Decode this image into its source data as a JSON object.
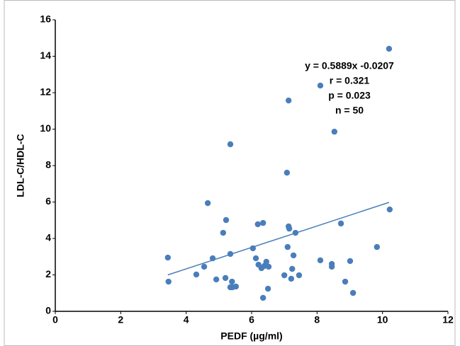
{
  "chart_data": {
    "type": "scatter",
    "xlabel": "PEDF (µg/ml)",
    "ylabel": "LDL-C/HDL-C",
    "xlim": [
      0,
      12
    ],
    "xticks": [
      0,
      2,
      4,
      6,
      8,
      10,
      12
    ],
    "ylim": [
      0,
      16
    ],
    "yticks": [
      0,
      2,
      4,
      6,
      8,
      10,
      12,
      14,
      16
    ],
    "grid": false,
    "series": [
      {
        "color": "#4a7ebb",
        "x": [
          5.35,
          7.13,
          8.1,
          10.2,
          8.53,
          7.08,
          4.66,
          5.22,
          5.13,
          6.19,
          6.35,
          7.13,
          7.15,
          7.34,
          8.73,
          10.22,
          3.44,
          3.46,
          4.31,
          4.55,
          4.81,
          4.92,
          5.2,
          5.35,
          5.35,
          5.4,
          5.41,
          5.52,
          6.04,
          6.13,
          6.21,
          6.3,
          6.39,
          6.45,
          6.52,
          6.5,
          6.35,
          7.0,
          7.1,
          7.21,
          7.24,
          7.28,
          7.45,
          8.1,
          8.45,
          8.45,
          8.86,
          9.01,
          9.1,
          9.83
        ],
        "values": [
          9.17,
          11.57,
          12.39,
          14.41,
          9.86,
          7.61,
          5.94,
          5.01,
          4.31,
          4.78,
          4.85,
          4.66,
          4.54,
          4.31,
          4.82,
          5.59,
          2.95,
          1.63,
          2.02,
          2.45,
          2.91,
          1.75,
          1.83,
          3.15,
          1.32,
          1.63,
          1.32,
          1.36,
          3.46,
          2.91,
          2.56,
          2.37,
          2.49,
          2.72,
          2.45,
          1.24,
          0.74,
          1.98,
          3.53,
          1.79,
          2.33,
          3.07,
          1.98,
          2.8,
          2.6,
          2.45,
          1.63,
          2.76,
          1.01,
          3.53
        ]
      }
    ],
    "trendline": {
      "color": "#4a7ebb",
      "x": [
        3.44,
        10.2
      ],
      "values": [
        2.0,
        5.98
      ]
    },
    "annotations": [
      "y = 0.5889x -0.0207",
      "r = 0.321",
      "p = 0.023",
      "n = 50"
    ]
  }
}
